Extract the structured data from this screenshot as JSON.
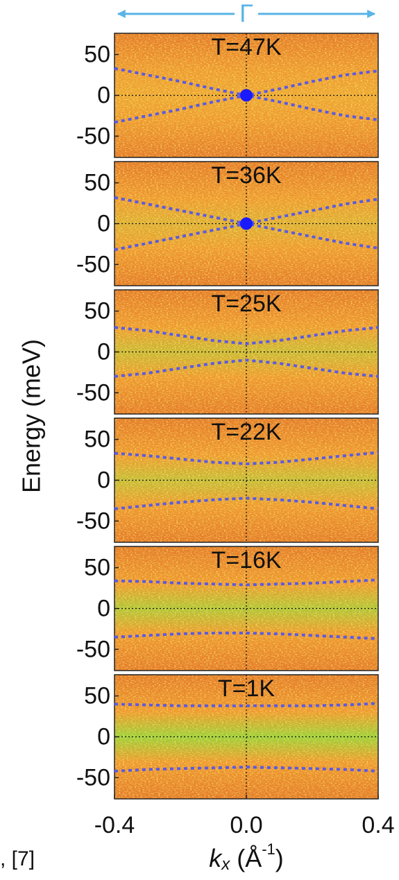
{
  "figure": {
    "top_label": "Γ",
    "y_label": "Energy (meV)",
    "x_label": [
      "k",
      "x",
      " (Å",
      "-1",
      ")"
    ],
    "caption": ", [7]"
  },
  "chart_data": [
    {
      "type": "line",
      "title": "T=47K",
      "xlim": [
        -0.4,
        0.4
      ],
      "ylim": [
        -76,
        76
      ],
      "yticks": [
        50,
        0,
        -50
      ],
      "x": [
        -0.4,
        -0.3,
        -0.2,
        -0.1,
        0,
        0.1,
        0.2,
        0.3,
        0.4
      ],
      "series": [
        {
          "color": "#5b5be0",
          "values": [
            33,
            25,
            17,
            8,
            0,
            8,
            17,
            25,
            30
          ]
        },
        {
          "color": "#5b5be0",
          "values": [
            -33,
            -25,
            -17,
            -8,
            0,
            -8,
            -17,
            -25,
            -30
          ]
        }
      ],
      "marker": {
        "x": 0,
        "y": 0,
        "color": "#1a1aff"
      }
    },
    {
      "type": "line",
      "title": "T=36K",
      "xlim": [
        -0.4,
        0.4
      ],
      "ylim": [
        -76,
        76
      ],
      "yticks": [
        50,
        0,
        -50
      ],
      "x": [
        -0.4,
        -0.3,
        -0.2,
        -0.1,
        0,
        0.1,
        0.2,
        0.3,
        0.4
      ],
      "series": [
        {
          "color": "#5b5be0",
          "values": [
            32,
            24,
            16,
            8,
            0,
            8,
            16,
            24,
            30
          ]
        },
        {
          "color": "#5b5be0",
          "values": [
            -32,
            -24,
            -16,
            -8,
            0,
            -8,
            -16,
            -24,
            -30
          ]
        }
      ],
      "marker": {
        "x": 0,
        "y": 0,
        "color": "#1a1aff"
      }
    },
    {
      "type": "line",
      "title": "T=25K",
      "xlim": [
        -0.4,
        0.4
      ],
      "ylim": [
        -76,
        76
      ],
      "yticks": [
        50,
        0,
        -50
      ],
      "x": [
        -0.4,
        -0.3,
        -0.2,
        -0.1,
        0,
        0.1,
        0.2,
        0.3,
        0.4
      ],
      "series": [
        {
          "color": "#5b5be0",
          "values": [
            30,
            26,
            20,
            14,
            10,
            14,
            20,
            26,
            30
          ]
        },
        {
          "color": "#5b5be0",
          "values": [
            -30,
            -26,
            -20,
            -14,
            -10,
            -14,
            -20,
            -26,
            -30
          ]
        }
      ]
    },
    {
      "type": "line",
      "title": "T=22K",
      "xlim": [
        -0.4,
        0.4
      ],
      "ylim": [
        -76,
        76
      ],
      "yticks": [
        50,
        0,
        -50
      ],
      "x": [
        -0.4,
        -0.3,
        -0.2,
        -0.1,
        0,
        0.1,
        0.2,
        0.3,
        0.4
      ],
      "series": [
        {
          "color": "#5b5be0",
          "values": [
            33,
            30,
            26,
            22,
            20,
            22,
            26,
            30,
            34
          ]
        },
        {
          "color": "#5b5be0",
          "values": [
            -35,
            -31,
            -27,
            -24,
            -22,
            -24,
            -27,
            -31,
            -35
          ]
        }
      ]
    },
    {
      "type": "line",
      "title": "T=16K",
      "xlim": [
        -0.4,
        0.4
      ],
      "ylim": [
        -76,
        76
      ],
      "yticks": [
        50,
        0,
        -50
      ],
      "x": [
        -0.4,
        -0.3,
        -0.2,
        -0.1,
        0,
        0.1,
        0.2,
        0.3,
        0.4
      ],
      "series": [
        {
          "color": "#5b5be0",
          "values": [
            34,
            33,
            31,
            30,
            29,
            30,
            31,
            33,
            35
          ]
        },
        {
          "color": "#5b5be0",
          "values": [
            -35,
            -33,
            -31,
            -30,
            -30,
            -31,
            -33,
            -35,
            -37
          ]
        }
      ]
    },
    {
      "type": "line",
      "title": "T=1K",
      "xlim": [
        -0.4,
        0.4
      ],
      "ylim": [
        -76,
        76
      ],
      "yticks": [
        50,
        0,
        -50
      ],
      "x": [
        -0.4,
        -0.3,
        -0.2,
        -0.1,
        0,
        0.1,
        0.2,
        0.3,
        0.4
      ],
      "series": [
        {
          "color": "#5b5be0",
          "values": [
            40,
            39,
            38,
            38,
            38,
            38,
            38,
            39,
            41
          ]
        },
        {
          "color": "#5b5be0",
          "values": [
            -42,
            -40,
            -39,
            -38,
            -37,
            -38,
            -39,
            -40,
            -42
          ]
        }
      ],
      "xticks": [
        -0.4,
        {
          "value": 0,
          "label": "0.0"
        },
        0.4
      ]
    }
  ]
}
